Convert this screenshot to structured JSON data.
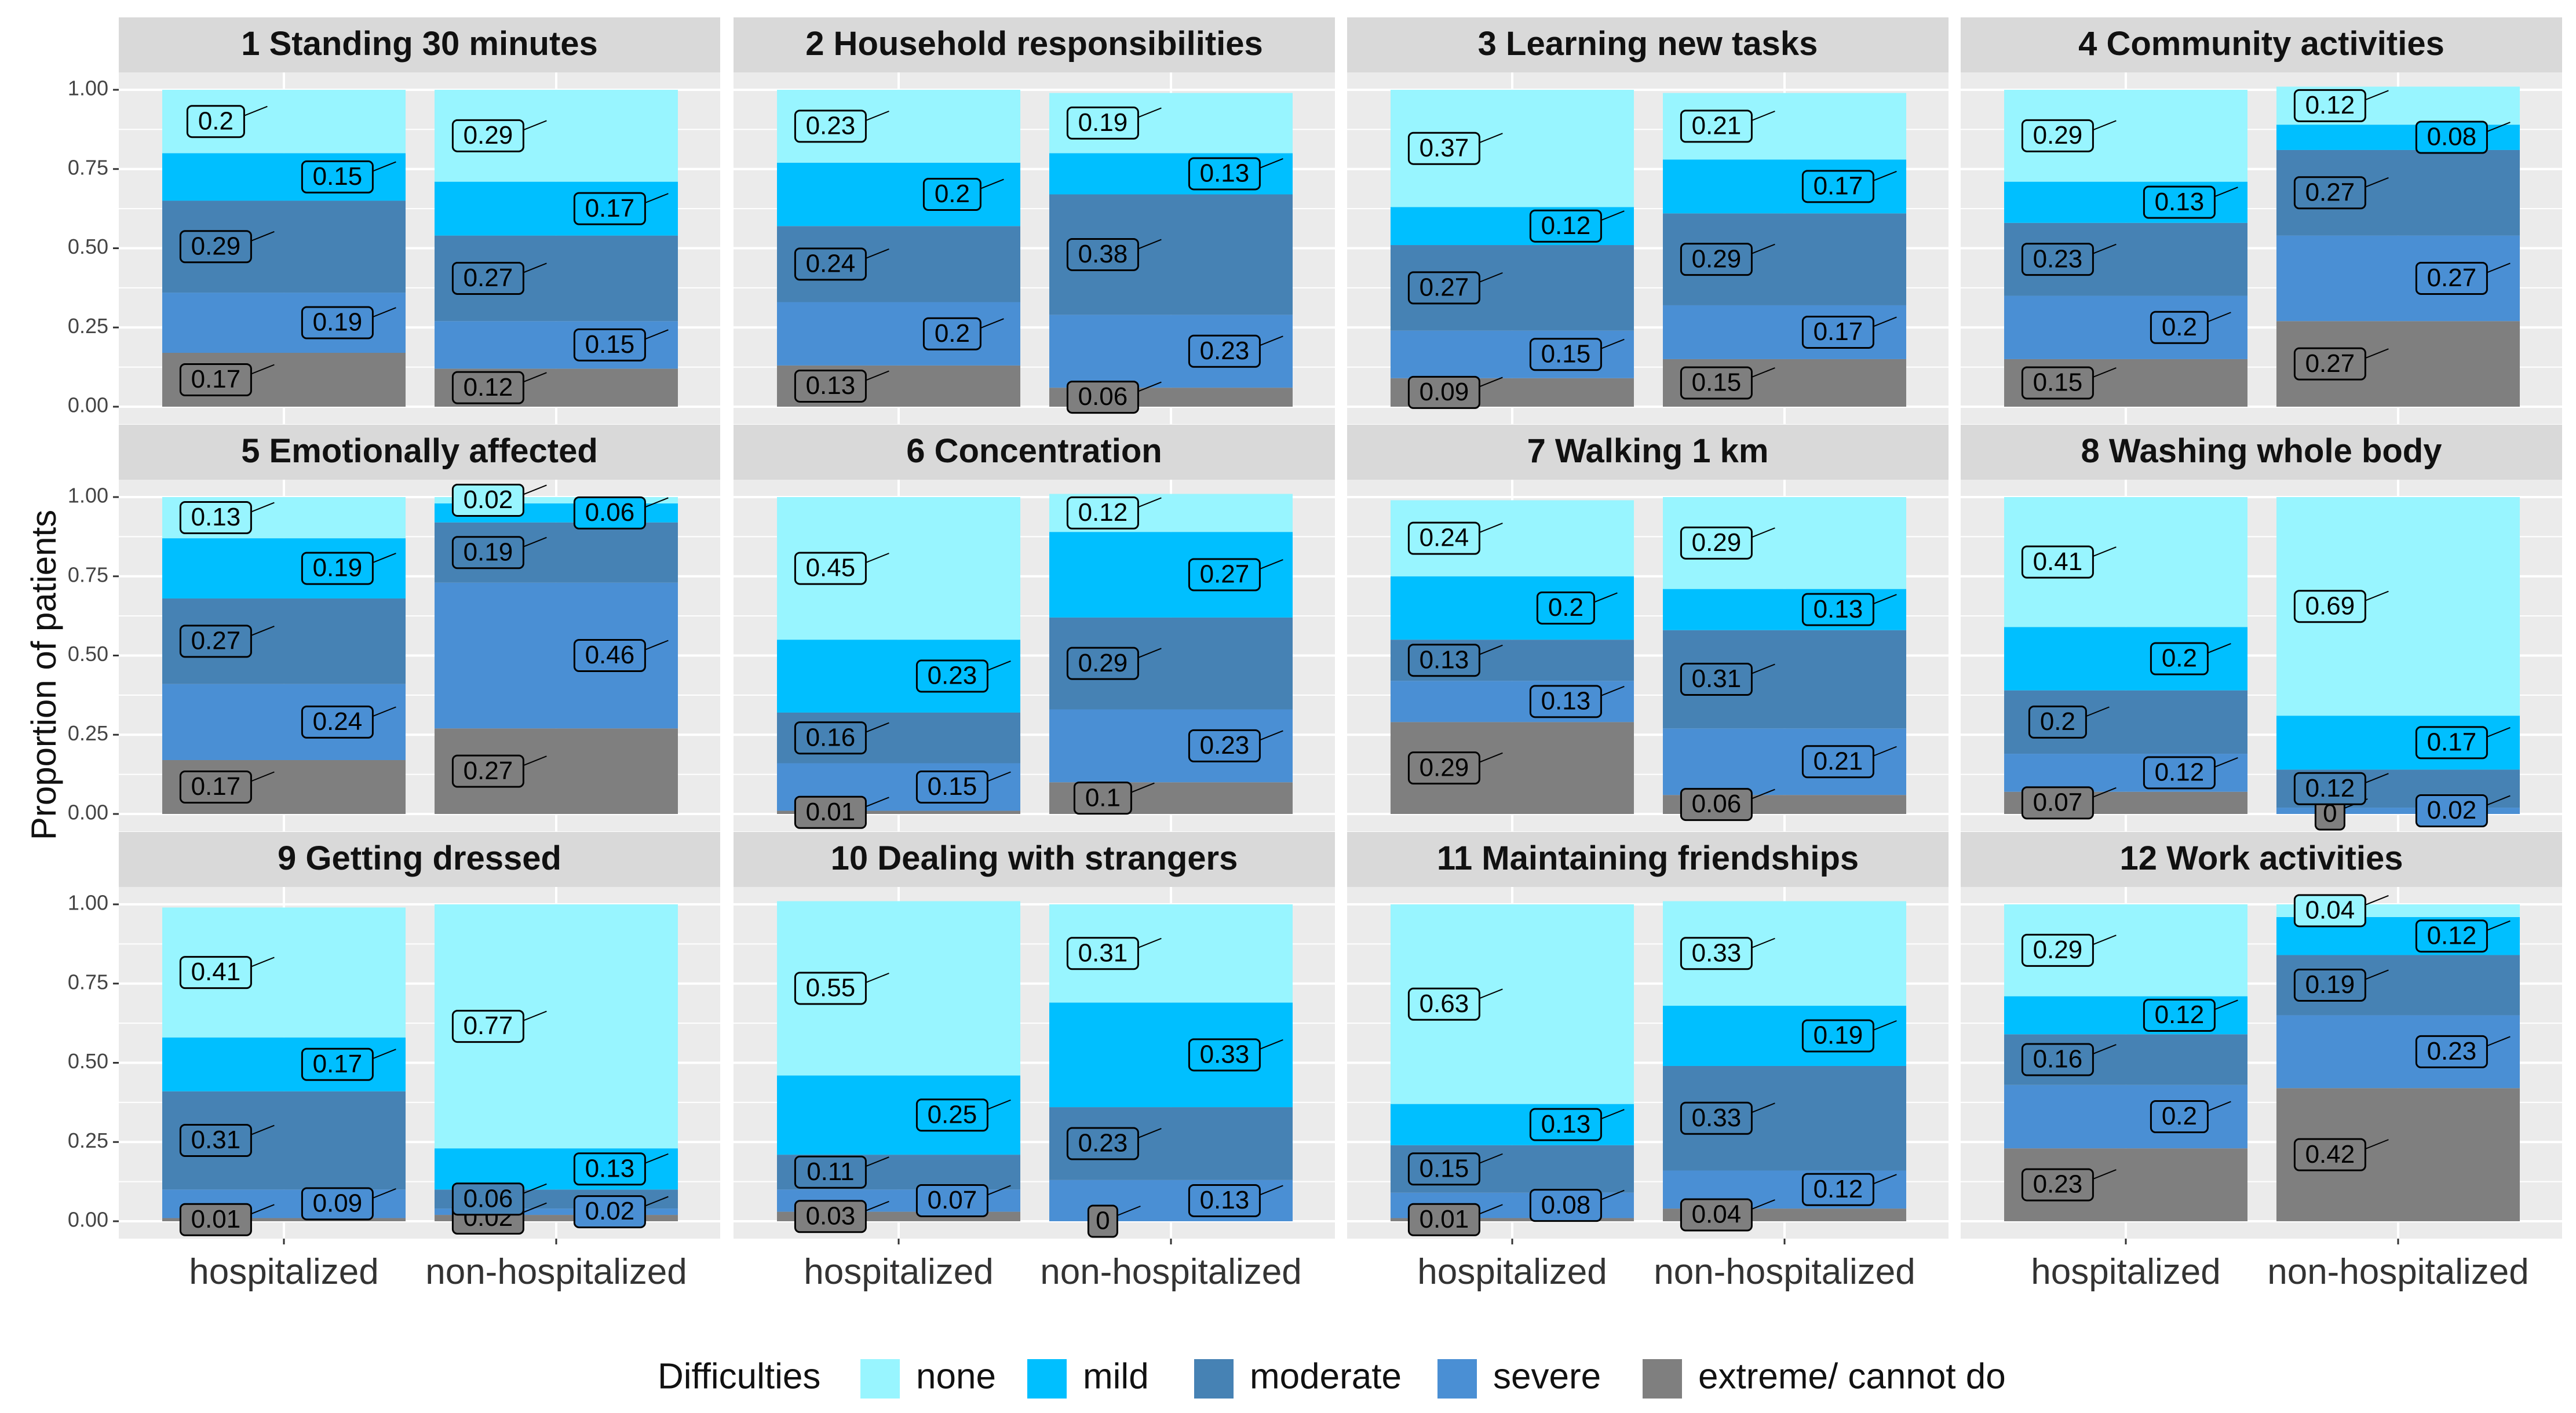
{
  "chart_data": {
    "type": "bar",
    "subtype": "stacked-proportion-facets",
    "ylabel": "Proportion of patients",
    "ylim": [
      0,
      1
    ],
    "y_ticks": [
      "0.00",
      "0.25",
      "0.50",
      "0.75",
      "1.00"
    ],
    "categories": [
      "hospitalized",
      "non-hospitalized"
    ],
    "legend": {
      "title": "Difficulties",
      "position": "bottom",
      "levels": [
        "none",
        "mild",
        "moderate",
        "severe",
        "extreme/ cannot do"
      ]
    },
    "colors": {
      "none": "#98f5ff",
      "mild": "#00bfff",
      "moderate": "#4682b4",
      "severe": "#4a8fd4",
      "extreme/ cannot do": "#7f7f7f",
      "panel_bg": "#ebebeb",
      "strip_bg": "#d9d9d9",
      "grid": "#ffffff"
    },
    "panels": [
      {
        "title": "1 Standing 30 minutes",
        "groups": {
          "hospitalized": {
            "values": {
              "none": 0.2,
              "mild": 0.15,
              "moderate": 0.29,
              "severe": 0.19,
              "extreme/ cannot do": 0.17
            },
            "labels": {
              "none": "0.2",
              "mild": "0.15",
              "moderate": "0.29",
              "severe": "0.19",
              "extreme/ cannot do": "0.17"
            }
          },
          "non-hospitalized": {
            "values": {
              "none": 0.29,
              "mild": 0.17,
              "moderate": 0.27,
              "severe": 0.15,
              "extreme/ cannot do": 0.12
            },
            "labels": {
              "none": "0.29",
              "mild": "0.17",
              "moderate": "0.27",
              "severe": "0.15",
              "extreme/ cannot do": "0.12"
            }
          }
        }
      },
      {
        "title": "2 Household responsibilities",
        "groups": {
          "hospitalized": {
            "values": {
              "none": 0.23,
              "mild": 0.2,
              "moderate": 0.24,
              "severe": 0.2,
              "extreme/ cannot do": 0.13
            },
            "labels": {
              "none": "0.23",
              "mild": "0.2",
              "moderate": "0.24",
              "severe": "0.2",
              "extreme/ cannot do": "0.13"
            }
          },
          "non-hospitalized": {
            "values": {
              "none": 0.19,
              "mild": 0.13,
              "moderate": 0.38,
              "severe": 0.23,
              "extreme/ cannot do": 0.06
            },
            "labels": {
              "none": "0.19",
              "mild": "0.13",
              "moderate": "0.38",
              "severe": "0.23",
              "extreme/ cannot do": "0.06"
            }
          }
        }
      },
      {
        "title": "3 Learning new tasks",
        "groups": {
          "hospitalized": {
            "values": {
              "none": 0.37,
              "mild": 0.12,
              "moderate": 0.27,
              "severe": 0.15,
              "extreme/ cannot do": 0.09
            },
            "labels": {
              "none": "0.37",
              "mild": "0.12",
              "moderate": "0.27",
              "severe": "0.15",
              "extreme/ cannot do": "0.09"
            }
          },
          "non-hospitalized": {
            "values": {
              "none": 0.21,
              "mild": 0.17,
              "moderate": 0.29,
              "severe": 0.17,
              "extreme/ cannot do": 0.15
            },
            "labels": {
              "none": "0.21",
              "mild": "0.17",
              "moderate": "0.29",
              "severe": "0.17",
              "extreme/ cannot do": "0.15"
            }
          }
        }
      },
      {
        "title": "4 Community activities",
        "groups": {
          "hospitalized": {
            "values": {
              "none": 0.29,
              "mild": 0.13,
              "moderate": 0.23,
              "severe": 0.2,
              "extreme/ cannot do": 0.15
            },
            "labels": {
              "none": "0.29",
              "mild": "0.13",
              "moderate": "0.23",
              "severe": "0.2",
              "extreme/ cannot do": "0.15"
            }
          },
          "non-hospitalized": {
            "values": {
              "none": 0.12,
              "mild": 0.08,
              "moderate": 0.27,
              "severe": 0.27,
              "extreme/ cannot do": 0.27
            },
            "labels": {
              "none": "0.12",
              "mild": "0.08",
              "moderate": "0.27",
              "severe": "0.27",
              "extreme/ cannot do": "0.27"
            }
          }
        }
      },
      {
        "title": "5 Emotionally affected",
        "groups": {
          "hospitalized": {
            "values": {
              "none": 0.13,
              "mild": 0.19,
              "moderate": 0.27,
              "severe": 0.24,
              "extreme/ cannot do": 0.17
            },
            "labels": {
              "none": "0.13",
              "mild": "0.19",
              "moderate": "0.27",
              "severe": "0.24",
              "extreme/ cannot do": "0.17"
            }
          },
          "non-hospitalized": {
            "values": {
              "none": 0.02,
              "mild": 0.06,
              "moderate": 0.19,
              "severe": 0.46,
              "extreme/ cannot do": 0.27
            },
            "labels": {
              "none": "0.02",
              "mild": "0.06",
              "moderate": "0.19",
              "severe": "0.46",
              "extreme/ cannot do": "0.27"
            }
          }
        }
      },
      {
        "title": "6 Concentration",
        "groups": {
          "hospitalized": {
            "values": {
              "none": 0.45,
              "mild": 0.23,
              "moderate": 0.16,
              "severe": 0.15,
              "extreme/ cannot do": 0.01
            },
            "labels": {
              "none": "0.45",
              "mild": "0.23",
              "moderate": "0.16",
              "severe": "0.15",
              "extreme/ cannot do": "0.01"
            }
          },
          "non-hospitalized": {
            "values": {
              "none": 0.12,
              "mild": 0.27,
              "moderate": 0.29,
              "severe": 0.23,
              "extreme/ cannot do": 0.1
            },
            "labels": {
              "none": "0.12",
              "mild": "0.27",
              "moderate": "0.29",
              "severe": "0.23",
              "extreme/ cannot do": "0.1"
            }
          }
        }
      },
      {
        "title": "7 Walking 1 km",
        "groups": {
          "hospitalized": {
            "values": {
              "none": 0.24,
              "mild": 0.2,
              "moderate": 0.13,
              "severe": 0.13,
              "extreme/ cannot do": 0.29
            },
            "labels": {
              "none": "0.24",
              "mild": "0.2",
              "moderate": "0.13",
              "severe": "0.13",
              "extreme/ cannot do": "0.29"
            }
          },
          "non-hospitalized": {
            "values": {
              "none": 0.29,
              "mild": 0.13,
              "moderate": 0.31,
              "severe": 0.21,
              "extreme/ cannot do": 0.06
            },
            "labels": {
              "none": "0.29",
              "mild": "0.13",
              "moderate": "0.31",
              "severe": "0.21",
              "extreme/ cannot do": "0.06"
            }
          }
        }
      },
      {
        "title": "8 Washing whole body",
        "groups": {
          "hospitalized": {
            "values": {
              "none": 0.41,
              "mild": 0.2,
              "moderate": 0.2,
              "severe": 0.12,
              "extreme/ cannot do": 0.07
            },
            "labels": {
              "none": "0.41",
              "mild": "0.2",
              "moderate": "0.2",
              "severe": "0.12",
              "extreme/ cannot do": "0.07"
            }
          },
          "non-hospitalized": {
            "values": {
              "none": 0.69,
              "mild": 0.17,
              "moderate": 0.12,
              "severe": 0.02,
              "extreme/ cannot do": 0.0
            },
            "labels": {
              "none": "0.69",
              "mild": "0.17",
              "moderate": "0.12",
              "severe": "0.02",
              "extreme/ cannot do": "0"
            }
          }
        }
      },
      {
        "title": "9 Getting dressed",
        "groups": {
          "hospitalized": {
            "values": {
              "none": 0.41,
              "mild": 0.17,
              "moderate": 0.31,
              "severe": 0.09,
              "extreme/ cannot do": 0.01
            },
            "labels": {
              "none": "0.41",
              "mild": "0.17",
              "moderate": "0.31",
              "severe": "0.09",
              "extreme/ cannot do": "0.01"
            }
          },
          "non-hospitalized": {
            "values": {
              "none": 0.77,
              "mild": 0.13,
              "moderate": 0.06,
              "severe": 0.02,
              "extreme/ cannot do": 0.02
            },
            "labels": {
              "none": "0.77",
              "mild": "0.13",
              "moderate": "0.06",
              "severe": "0.02",
              "extreme/ cannot do": "0.02"
            }
          }
        }
      },
      {
        "title": "10 Dealing with strangers",
        "groups": {
          "hospitalized": {
            "values": {
              "none": 0.55,
              "mild": 0.25,
              "moderate": 0.11,
              "severe": 0.07,
              "extreme/ cannot do": 0.03
            },
            "labels": {
              "none": "0.55",
              "mild": "0.25",
              "moderate": "0.11",
              "severe": "0.07",
              "extreme/ cannot do": "0.03"
            }
          },
          "non-hospitalized": {
            "values": {
              "none": 0.31,
              "mild": 0.33,
              "moderate": 0.23,
              "severe": 0.13,
              "extreme/ cannot do": 0.0
            },
            "labels": {
              "none": "0.31",
              "mild": "0.33",
              "moderate": "0.23",
              "severe": "0.13",
              "extreme/ cannot do": "0"
            }
          }
        }
      },
      {
        "title": "11 Maintaining friendships",
        "groups": {
          "hospitalized": {
            "values": {
              "none": 0.63,
              "mild": 0.13,
              "moderate": 0.15,
              "severe": 0.08,
              "extreme/ cannot do": 0.01
            },
            "labels": {
              "none": "0.63",
              "mild": "0.13",
              "moderate": "0.15",
              "severe": "0.08",
              "extreme/ cannot do": "0.01"
            }
          },
          "non-hospitalized": {
            "values": {
              "none": 0.33,
              "mild": 0.19,
              "moderate": 0.33,
              "severe": 0.12,
              "extreme/ cannot do": 0.04
            },
            "labels": {
              "none": "0.33",
              "mild": "0.19",
              "moderate": "0.33",
              "severe": "0.12",
              "extreme/ cannot do": "0.04"
            }
          }
        }
      },
      {
        "title": "12 Work activities",
        "groups": {
          "hospitalized": {
            "values": {
              "none": 0.29,
              "mild": 0.12,
              "moderate": 0.16,
              "severe": 0.2,
              "extreme/ cannot do": 0.23
            },
            "labels": {
              "none": "0.29",
              "mild": "0.12",
              "moderate": "0.16",
              "severe": "0.2",
              "extreme/ cannot do": "0.23"
            }
          },
          "non-hospitalized": {
            "values": {
              "none": 0.04,
              "mild": 0.12,
              "moderate": 0.19,
              "severe": 0.23,
              "extreme/ cannot do": 0.42
            },
            "labels": {
              "none": "0.04",
              "mild": "0.12",
              "moderate": "0.19",
              "severe": "0.23",
              "extreme/ cannot do": "0.42"
            }
          }
        }
      }
    ]
  }
}
